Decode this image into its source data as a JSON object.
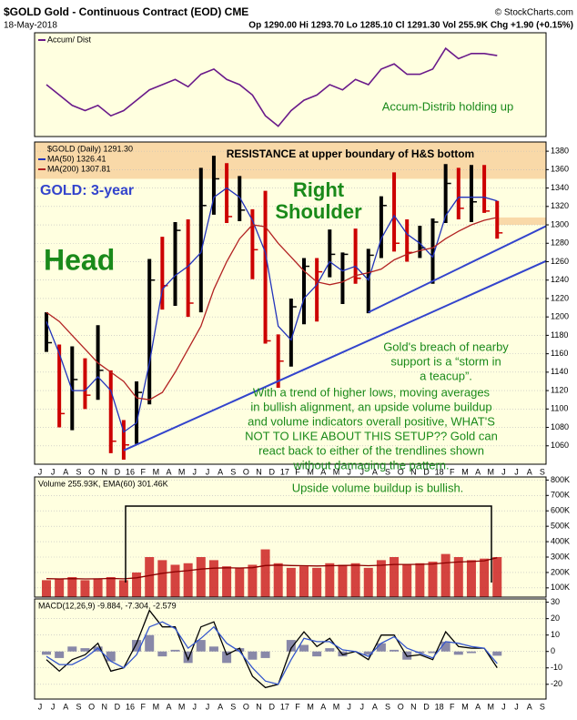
{
  "header": {
    "title": "$GOLD Gold - Continuous Contract (EOD) CME",
    "source": "© StockCharts.com",
    "date": "18-May-2018",
    "quote": "Op 1290.00 Hi 1293.70 Lo 1285.10 Cl 1291.30 Vol 255.9K Chg +1.90 (+0.15%)"
  },
  "chart_data": [
    {
      "type": "line",
      "ylim": [
        0,
        100
      ],
      "series": [
        {
          "name": "Accum/ Dist",
          "color": "#6a1a8a",
          "style": "line",
          "values": [
            50,
            40,
            30,
            25,
            30,
            20,
            25,
            35,
            45,
            50,
            55,
            48,
            60,
            65,
            55,
            50,
            40,
            20,
            10,
            25,
            35,
            40,
            50,
            45,
            55,
            50,
            65,
            70,
            60,
            60,
            65,
            85,
            75,
            80,
            80,
            78,
            null,
            null,
            null,
            null
          ]
        }
      ],
      "annotations": [
        {
          "text": "Accum-Distrib holding up",
          "color": "#1a8a1a"
        }
      ]
    },
    {
      "type": "ohlc",
      "name": "$GOLD (Daily) 1291.30",
      "ylim": [
        1040,
        1390
      ],
      "yticks": [
        1060,
        1080,
        1100,
        1120,
        1140,
        1160,
        1180,
        1200,
        1220,
        1240,
        1260,
        1280,
        1300,
        1320,
        1340,
        1360,
        1380
      ],
      "categories": [
        "J",
        "J",
        "A",
        "S",
        "O",
        "N",
        "D",
        "16",
        "F",
        "M",
        "A",
        "M",
        "J",
        "J",
        "A",
        "S",
        "O",
        "N",
        "D",
        "17",
        "F",
        "M",
        "A",
        "M",
        "J",
        "J",
        "A",
        "S",
        "O",
        "N",
        "D",
        "18",
        "F",
        "M",
        "A",
        "M",
        "J",
        "J",
        "A",
        "S"
      ],
      "up_color": "#000000",
      "down_color": "#cc0000",
      "high": [
        1205,
        1170,
        1168,
        1155,
        1191,
        1142,
        1088,
        1130,
        1263,
        1287,
        1303,
        1306,
        1362,
        1375,
        1367,
        1353,
        1317,
        1337,
        1181,
        1220,
        1264,
        1264,
        1295,
        1270,
        1296,
        1274,
        1331,
        1357,
        1306,
        1299,
        1307,
        1366,
        1362,
        1365,
        1365,
        1326,
        null,
        null,
        null,
        null
      ],
      "low": [
        1162,
        1080,
        1077,
        1100,
        1110,
        1052,
        1045,
        1062,
        1105,
        1208,
        1212,
        1200,
        1205,
        1311,
        1302,
        1304,
        1241,
        1171,
        1123,
        1146,
        1192,
        1195,
        1243,
        1214,
        1236,
        1204,
        1264,
        1271,
        1260,
        1264,
        1236,
        1302,
        1306,
        1303,
        1313,
        1285,
        null,
        null,
        null,
        null
      ],
      "close": [
        1172,
        1095,
        1132,
        1115,
        1142,
        1065,
        1061,
        1118,
        1240,
        1234,
        1294,
        1215,
        1321,
        1350,
        1309,
        1316,
        1273,
        1174,
        1152,
        1211,
        1255,
        1249,
        1268,
        1268,
        1242,
        1267,
        1321,
        1280,
        1270,
        1275,
        1303,
        1345,
        1318,
        1325,
        1315,
        1291.3,
        null,
        null,
        null,
        null
      ],
      "series": [
        {
          "name": "MA(50) 1326.41",
          "color": "#2233bb",
          "style": "line",
          "values": [
            1195,
            1160,
            1120,
            1120,
            1135,
            1120,
            1075,
            1085,
            1150,
            1230,
            1245,
            1255,
            1270,
            1330,
            1340,
            1330,
            1305,
            1270,
            1190,
            1175,
            1220,
            1235,
            1260,
            1250,
            1255,
            1240,
            1285,
            1310,
            1290,
            1280,
            1265,
            1310,
            1330,
            1330,
            1330,
            1326,
            null,
            null,
            null,
            null
          ]
        },
        {
          "name": "MA(200) 1307.81",
          "color": "#b22222",
          "style": "line",
          "values": [
            1205,
            1195,
            1180,
            1165,
            1150,
            1140,
            1130,
            1112,
            1110,
            1118,
            1140,
            1165,
            1190,
            1230,
            1260,
            1285,
            1300,
            1298,
            1280,
            1265,
            1250,
            1238,
            1235,
            1238,
            1245,
            1248,
            1252,
            1262,
            1268,
            1272,
            1275,
            1285,
            1293,
            1300,
            1305,
            1308,
            null,
            null,
            null,
            null
          ]
        },
        {
          "color": "#3344cc",
          "style": "trend",
          "values": [
            null,
            null,
            null,
            null,
            null,
            null,
            1055,
            null,
            null,
            null,
            null,
            null,
            null,
            null,
            null,
            null,
            null,
            null,
            null,
            null,
            null,
            null,
            null,
            null,
            null,
            null,
            null,
            null,
            null,
            null,
            null,
            null,
            null,
            null,
            null,
            null,
            null,
            null,
            null,
            1262
          ]
        },
        {
          "color": "#3344cc",
          "style": "trend",
          "values": [
            null,
            null,
            null,
            null,
            null,
            null,
            null,
            null,
            null,
            null,
            null,
            null,
            null,
            null,
            null,
            null,
            null,
            null,
            null,
            null,
            null,
            null,
            null,
            null,
            null,
            1205,
            null,
            null,
            null,
            null,
            null,
            null,
            null,
            null,
            null,
            null,
            null,
            null,
            null,
            1300
          ]
        }
      ],
      "bands": [
        {
          "range": [
            1350,
            1390
          ],
          "color": "#f9d9a8"
        },
        {
          "range": [
            1300,
            1308
          ],
          "color": "#f9d9a8"
        }
      ],
      "annotations": [
        {
          "text": "RESISTANCE at upper boundary of H&S bottom",
          "color": "#000000"
        },
        {
          "text": "GOLD: 3-year",
          "color": "#3344cc"
        },
        {
          "text": "Head",
          "color": "#1a8a1a"
        },
        {
          "lines": [
            "Right",
            "Shoulder"
          ],
          "color": "#1a8a1a"
        },
        {
          "lines": [
            "Gold's breach of nearby",
            "support is a “storm in",
            "a teacup”."
          ],
          "color": "#1a8a1a"
        },
        {
          "lines": [
            "With a trend of higher lows, moving averages",
            "in bullish alignment, an upside volume buildup",
            "and volume indicators overall positive, WHAT'S",
            "NOT TO LIKE ABOUT THIS SETUP?? Gold can",
            "react back to either of the trendlines shown",
            "without damaging the pattern."
          ],
          "color": "#1a8a1a"
        }
      ]
    },
    {
      "type": "bar",
      "legend": "Volume 255.93K, EMA(60) 301.46K",
      "ylim": [
        40000,
        820000
      ],
      "yticks": [
        {
          "value": 100000,
          "label": "100K"
        },
        {
          "value": 200000,
          "label": "200K"
        },
        {
          "value": 300000,
          "label": "300K"
        },
        {
          "value": 400000,
          "label": "400K"
        },
        {
          "value": 500000,
          "label": "500K"
        },
        {
          "value": 600000,
          "label": "600K"
        },
        {
          "value": 700000,
          "label": "700K"
        },
        {
          "value": 800000,
          "label": "800K"
        }
      ],
      "series": [
        {
          "color": "#cc2222",
          "style": "bars",
          "values": [
            150000,
            160000,
            170000,
            150000,
            160000,
            170000,
            150000,
            200000,
            300000,
            280000,
            250000,
            260000,
            300000,
            280000,
            240000,
            230000,
            250000,
            350000,
            260000,
            230000,
            240000,
            230000,
            260000,
            250000,
            260000,
            230000,
            280000,
            300000,
            250000,
            260000,
            270000,
            320000,
            300000,
            280000,
            290000,
            300000,
            null,
            null,
            null,
            null
          ]
        },
        {
          "color": "#8b0000",
          "style": "line",
          "values": [
            160000,
            158000,
            160000,
            158000,
            159000,
            161000,
            159000,
            165000,
            180000,
            195000,
            205000,
            212000,
            222000,
            228000,
            230000,
            229000,
            231000,
            245000,
            248000,
            245000,
            244000,
            242000,
            244000,
            245000,
            247000,
            244000,
            247000,
            252000,
            252000,
            253000,
            255000,
            262000,
            268000,
            271000,
            276000,
            295000,
            null,
            null,
            null,
            null
          ]
        }
      ],
      "annotations": [
        {
          "text": "Upside volume buildup is bullish.",
          "color": "#1a8a1a"
        }
      ]
    },
    {
      "type": "macd",
      "legend": "MACD(12,26,9) -9.884, -7.304, -2.579",
      "ylim": [
        -29,
        32
      ],
      "yticks": [
        -20,
        -10,
        0,
        10,
        20,
        30
      ],
      "categories": [
        "J",
        "J",
        "A",
        "S",
        "O",
        "N",
        "D",
        "16",
        "F",
        "M",
        "A",
        "M",
        "J",
        "J",
        "A",
        "S",
        "O",
        "N",
        "D",
        "17",
        "F",
        "M",
        "A",
        "M",
        "J",
        "J",
        "A",
        "S",
        "O",
        "N",
        "D",
        "18",
        "F",
        "M",
        "A",
        "M",
        "J",
        "J",
        "A",
        "S"
      ],
      "series": [
        {
          "color": "#6a6a9a",
          "style": "hist",
          "values": [
            -2,
            -4,
            3,
            2,
            3,
            -6,
            0,
            7,
            10,
            -3,
            1,
            -7,
            7,
            3,
            -7,
            2,
            -5,
            -4,
            0,
            7,
            4,
            -3,
            2,
            -3,
            0,
            -2,
            5,
            1,
            -5,
            -1,
            -1,
            6,
            -2,
            -1,
            0,
            -2.6,
            null,
            null,
            null,
            null
          ]
        },
        {
          "color": "#000000",
          "style": "line",
          "values": [
            -5,
            -12,
            -5,
            -2,
            5,
            -12,
            -10,
            5,
            25,
            15,
            15,
            -5,
            15,
            18,
            -2,
            2,
            -15,
            -22,
            -20,
            2,
            12,
            3,
            8,
            -2,
            0,
            -5,
            10,
            10,
            -3,
            -2,
            -5,
            12,
            3,
            2,
            2,
            -9.9,
            null,
            null,
            null,
            null
          ]
        },
        {
          "color": "#3355cc",
          "style": "line",
          "values": [
            -3,
            -8,
            -8,
            -4,
            2,
            -6,
            -10,
            -2,
            15,
            18,
            14,
            2,
            8,
            15,
            5,
            0,
            -10,
            -18,
            -20,
            -5,
            8,
            6,
            6,
            1,
            0,
            -3,
            5,
            9,
            2,
            -1,
            -4,
            6,
            5,
            3,
            2,
            -7.3,
            null,
            null,
            null,
            null
          ]
        }
      ]
    }
  ]
}
